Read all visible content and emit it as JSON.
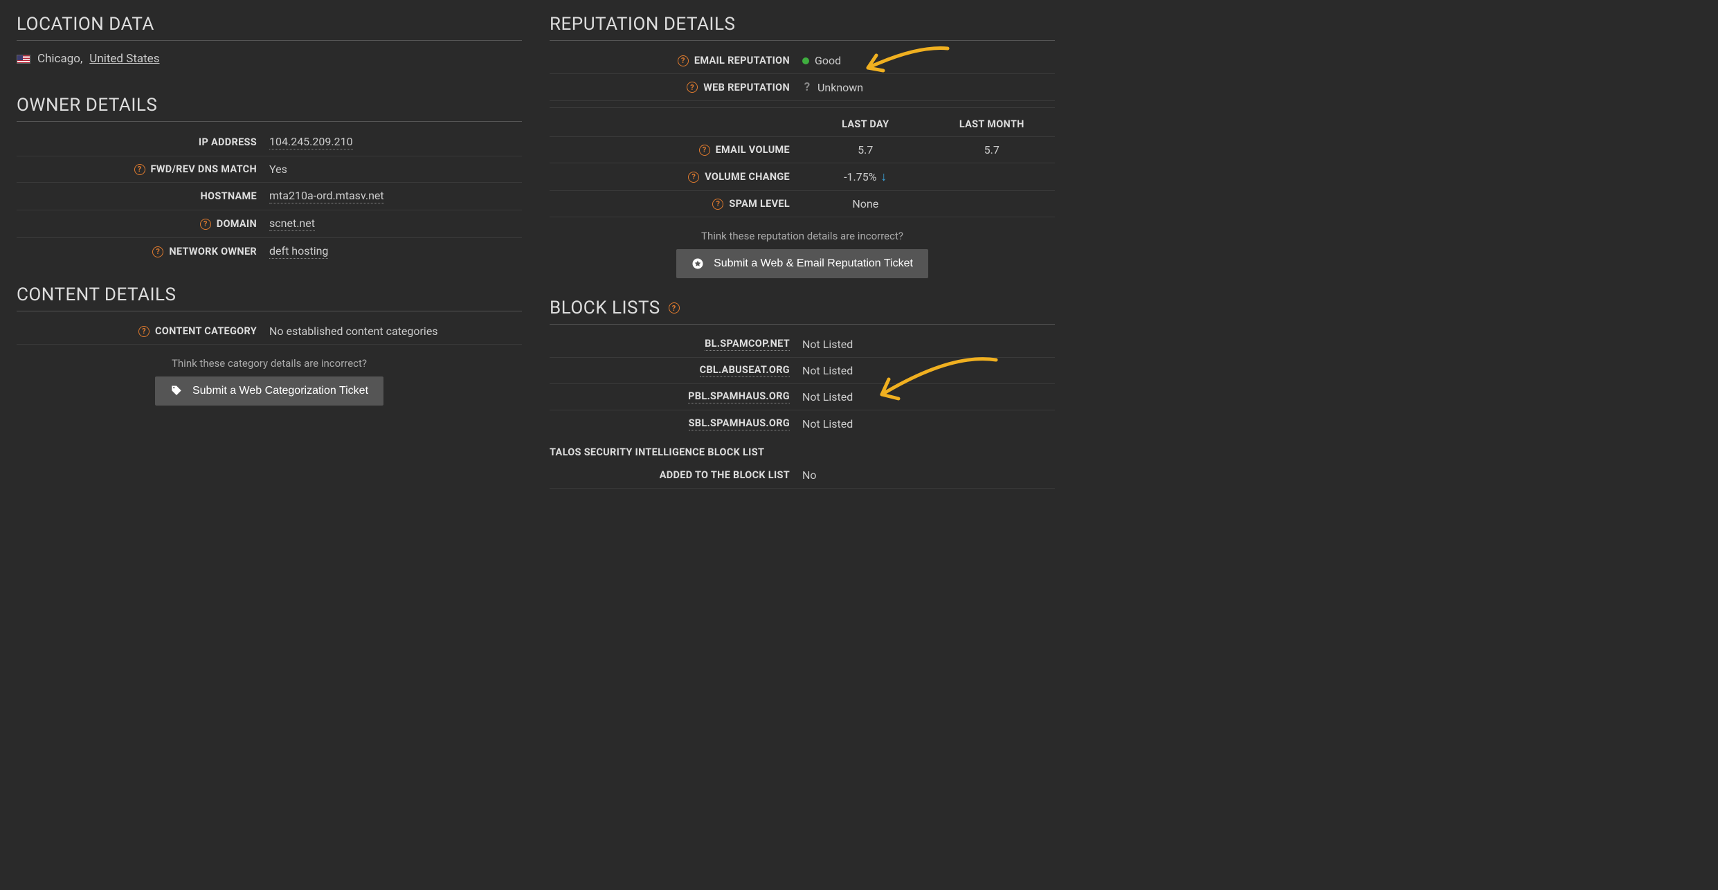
{
  "colors": {
    "background": "#2a2a2a",
    "text": "#cccccc",
    "heading": "#dddddd",
    "border": "#3a3a3a",
    "accent_orange": "#e07b2e",
    "button_bg": "#555555",
    "status_good": "#3fae3f",
    "status_unknown": "#888888",
    "arrow_down": "#3ba7e0",
    "annotation": "#f0b020"
  },
  "typography": {
    "body_fontsize": 16,
    "heading_fontsize": 26,
    "label_fontsize": 14.5,
    "font_family": "system-ui"
  },
  "location": {
    "heading": "LOCATION DATA",
    "city": "Chicago,",
    "country": "United States",
    "flag_icon_name": "us-flag"
  },
  "owner": {
    "heading": "OWNER DETAILS",
    "rows": [
      {
        "label": "IP ADDRESS",
        "value": "104.245.209.210",
        "help": false,
        "underlined": true
      },
      {
        "label": "FWD/REV DNS MATCH",
        "value": "Yes",
        "help": true,
        "underlined": false
      },
      {
        "label": "HOSTNAME",
        "value": "mta210a-ord.mtasv.net",
        "help": false,
        "underlined": true
      },
      {
        "label": "DOMAIN",
        "value": "scnet.net",
        "help": true,
        "underlined": true
      },
      {
        "label": "NETWORK OWNER",
        "value": "deft hosting",
        "help": true,
        "underlined": true
      }
    ]
  },
  "content": {
    "heading": "CONTENT DETAILS",
    "category_label": "CONTENT CATEGORY",
    "category_value": "No established content categories",
    "incorrect_note": "Think these category details are incorrect?",
    "button_label": "Submit a Web Categorization Ticket"
  },
  "reputation": {
    "heading": "REPUTATION DETAILS",
    "email_label": "EMAIL REPUTATION",
    "email_status": "Good",
    "email_status_color": "#3fae3f",
    "web_label": "WEB REPUTATION",
    "web_status": "Unknown",
    "volume_headers": {
      "day": "LAST DAY",
      "month": "LAST MONTH"
    },
    "volume_rows": [
      {
        "label": "EMAIL VOLUME",
        "help": true,
        "day": "5.7",
        "month": "5.7",
        "arrow": false
      },
      {
        "label": "VOLUME CHANGE",
        "help": true,
        "day": "-1.75%",
        "month": "",
        "arrow": true
      },
      {
        "label": "SPAM LEVEL",
        "help": true,
        "day": "None",
        "month": "",
        "arrow": false
      }
    ],
    "incorrect_note": "Think these reputation details are incorrect?",
    "button_label": "Submit a Web & Email Reputation Ticket"
  },
  "blocklists": {
    "heading": "BLOCK LISTS",
    "rows": [
      {
        "label": "BL.SPAMCOP.NET",
        "value": "Not Listed"
      },
      {
        "label": "CBL.ABUSEAT.ORG",
        "value": "Not Listed"
      },
      {
        "label": "PBL.SPAMHAUS.ORG",
        "value": "Not Listed"
      },
      {
        "label": "SBL.SPAMHAUS.ORG",
        "value": "Not Listed"
      }
    ],
    "talos_heading": "TALOS SECURITY INTELLIGENCE BLOCK LIST",
    "talos_label": "ADDED TO THE BLOCK LIST",
    "talos_value": "No"
  },
  "annotations": {
    "arrow1": {
      "stroke": "#f0b020",
      "stroke_width": 5
    },
    "arrow2": {
      "stroke": "#f0b020",
      "stroke_width": 5
    }
  }
}
